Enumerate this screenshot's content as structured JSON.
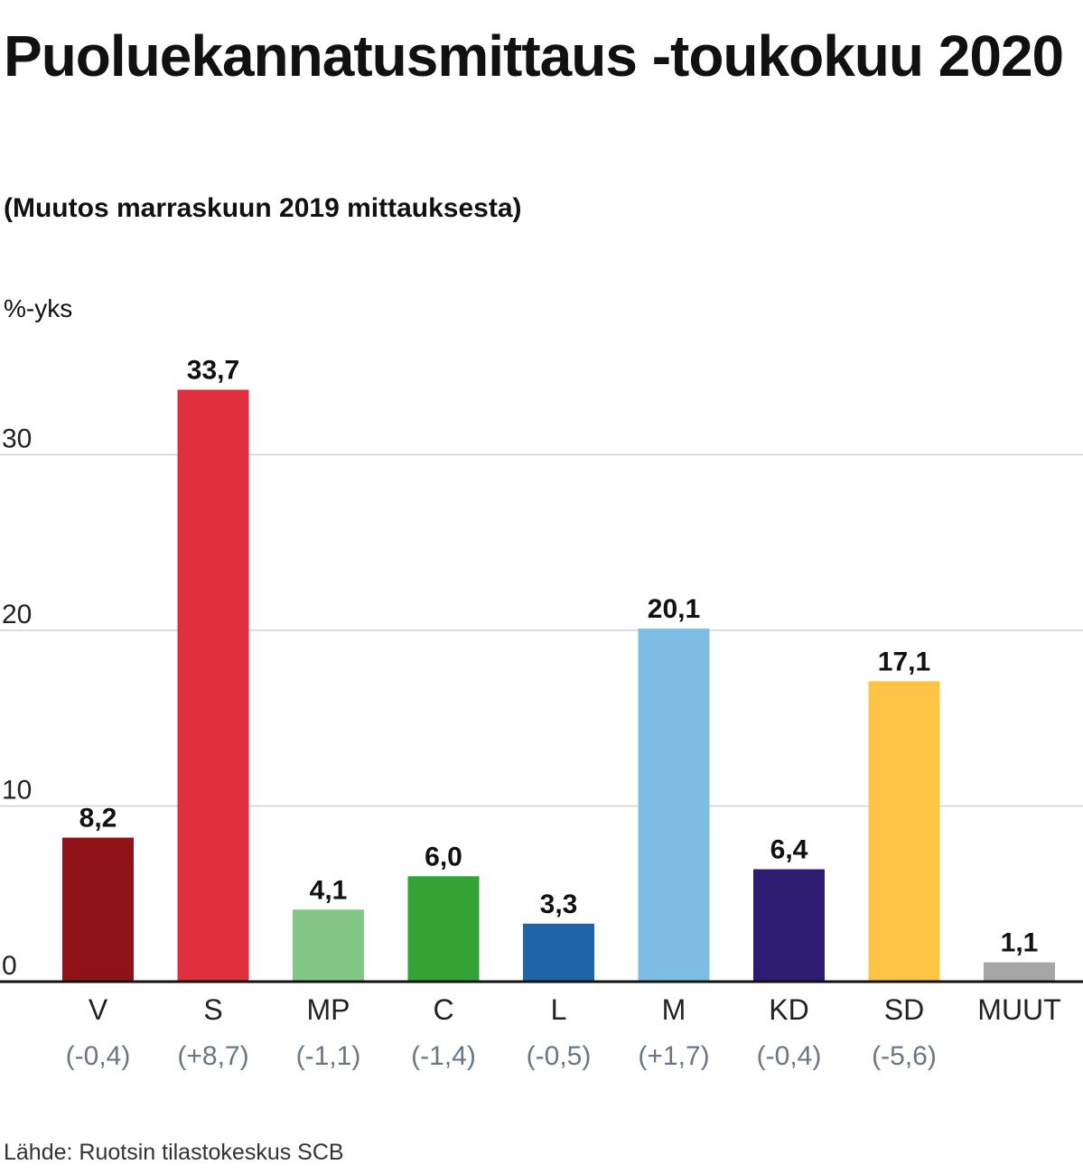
{
  "title": "Puoluekannatusmittaus -toukokuu 2020",
  "subtitle": "(Muutos marraskuun 2019 mittauksesta)",
  "unit_label": "%-yks",
  "source": "Lähde: Ruotsin tilastokeskus SCB",
  "chart_data": {
    "type": "bar",
    "categories": [
      "V",
      "S",
      "MP",
      "C",
      "L",
      "M",
      "KD",
      "SD",
      "MUUT"
    ],
    "values": [
      8.2,
      33.7,
      4.1,
      6.0,
      3.3,
      20.1,
      6.4,
      17.1,
      1.1
    ],
    "value_labels": [
      "8,2",
      "33,7",
      "4,1",
      "6,0",
      "3,3",
      "20,1",
      "6,4",
      "17,1",
      "1,1"
    ],
    "change_labels": [
      "(-0,4)",
      "(+8,7)",
      "(-1,1)",
      "(-1,4)",
      "(-0,5)",
      "(+1,7)",
      "(-0,4)",
      "(-5,6)",
      ""
    ],
    "colors": [
      "#8f1218",
      "#e03040",
      "#82c785",
      "#33a336",
      "#1f66a8",
      "#7dbde3",
      "#2e1c72",
      "#fdc446",
      "#a6a6a6"
    ],
    "ylim": [
      0,
      34
    ],
    "yticks": [
      0,
      10,
      20,
      30
    ],
    "ytick_labels": [
      "0",
      "10",
      "20",
      "30"
    ],
    "grid": true,
    "legend": "none"
  }
}
